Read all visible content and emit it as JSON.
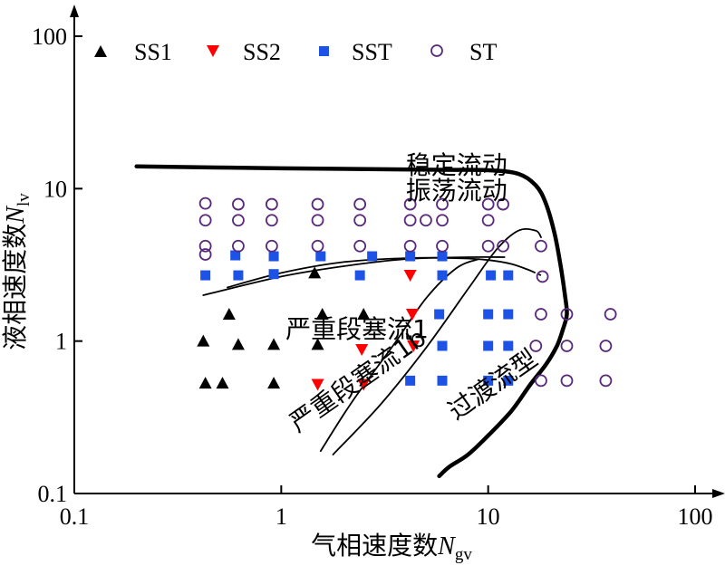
{
  "chart_data": {
    "type": "scatter",
    "xscale": "log",
    "yscale": "log",
    "xlim": [
      0.1,
      100
    ],
    "ylim": [
      0.1,
      100
    ],
    "grid": false,
    "legend_placement": "top",
    "xlabel": {
      "main": "气相速度数",
      "symbol": "N",
      "sub": "gv"
    },
    "ylabel": {
      "main": "液相速度数",
      "symbol": "N",
      "sub": "lv"
    },
    "x_ticks": [
      {
        "value": 0.1,
        "label": "0.1"
      },
      {
        "value": 1,
        "label": "1"
      },
      {
        "value": 10,
        "label": "10"
      },
      {
        "value": 100,
        "label": "100"
      }
    ],
    "y_ticks": [
      {
        "value": 0.1,
        "label": "0.1"
      },
      {
        "value": 1,
        "label": "1"
      },
      {
        "value": 10,
        "label": "10"
      },
      {
        "value": 100,
        "label": "100"
      }
    ],
    "series": [
      {
        "name": "SS1",
        "marker": "triangle-up",
        "color": "#000000",
        "points": [
          [
            0.42,
            1.0
          ],
          [
            0.43,
            0.53
          ],
          [
            0.52,
            0.53
          ],
          [
            0.56,
            1.5
          ],
          [
            0.62,
            0.95
          ],
          [
            0.92,
            0.53
          ],
          [
            0.92,
            0.95
          ],
          [
            1.45,
            2.8
          ],
          [
            1.5,
            0.95
          ],
          [
            1.58,
            1.5
          ],
          [
            2.5,
            1.5
          ]
        ]
      },
      {
        "name": "SS2",
        "marker": "triangle-down",
        "color": "#ff0000",
        "points": [
          [
            1.5,
            0.52
          ],
          [
            2.45,
            0.88
          ],
          [
            2.5,
            0.52
          ],
          [
            4.2,
            2.7
          ],
          [
            4.3,
            1.5
          ],
          [
            4.35,
            0.93
          ]
        ]
      },
      {
        "name": "SST",
        "marker": "square",
        "color": "#1c52e6",
        "points": [
          [
            0.43,
            2.7
          ],
          [
            0.6,
            3.65
          ],
          [
            0.62,
            2.7
          ],
          [
            0.92,
            2.75
          ],
          [
            0.92,
            3.6
          ],
          [
            1.55,
            3.6
          ],
          [
            2.4,
            2.7
          ],
          [
            2.75,
            3.6
          ],
          [
            4.2,
            3.6
          ],
          [
            4.2,
            0.55
          ],
          [
            5.8,
            1.5
          ],
          [
            6.0,
            0.93
          ],
          [
            6.0,
            0.55
          ],
          [
            6.0,
            2.7
          ],
          [
            6.0,
            3.6
          ],
          [
            10.0,
            1.5
          ],
          [
            10.0,
            0.93
          ],
          [
            10.0,
            0.55
          ],
          [
            10.3,
            2.7
          ],
          [
            12.5,
            2.7
          ],
          [
            12.5,
            1.5
          ],
          [
            12.5,
            0.93
          ],
          [
            12.5,
            0.55
          ]
        ]
      },
      {
        "name": "ST",
        "marker": "circle-open",
        "color": "#5a2a7a",
        "points": [
          [
            0.43,
            8.0
          ],
          [
            0.43,
            6.2
          ],
          [
            0.43,
            4.2
          ],
          [
            0.43,
            3.7
          ],
          [
            0.62,
            7.9
          ],
          [
            0.62,
            6.2
          ],
          [
            0.62,
            4.2
          ],
          [
            0.9,
            7.9
          ],
          [
            0.9,
            6.2
          ],
          [
            0.9,
            4.2
          ],
          [
            1.5,
            7.9
          ],
          [
            1.5,
            6.2
          ],
          [
            1.5,
            4.2
          ],
          [
            2.4,
            7.9
          ],
          [
            2.4,
            6.2
          ],
          [
            2.4,
            4.2
          ],
          [
            4.2,
            7.9
          ],
          [
            4.2,
            6.2
          ],
          [
            4.2,
            4.2
          ],
          [
            5.0,
            6.2
          ],
          [
            6.0,
            7.9
          ],
          [
            6.0,
            6.2
          ],
          [
            6.0,
            4.2
          ],
          [
            10.0,
            7.9
          ],
          [
            10.0,
            6.2
          ],
          [
            10.0,
            4.2
          ],
          [
            11.8,
            7.9
          ],
          [
            11.8,
            4.2
          ],
          [
            18.0,
            4.2
          ],
          [
            18.3,
            2.65
          ],
          [
            18.0,
            1.5
          ],
          [
            17.0,
            0.93
          ],
          [
            18.0,
            0.55
          ],
          [
            24.0,
            1.5
          ],
          [
            24.0,
            0.93
          ],
          [
            24.0,
            0.55
          ],
          [
            37.0,
            0.93
          ],
          [
            37.0,
            0.55
          ],
          [
            39.0,
            1.5
          ]
        ]
      }
    ],
    "boundaries": [
      {
        "id": "stable-oscillating",
        "style": "thick",
        "points": [
          [
            0.2,
            14.0
          ],
          [
            1,
            13.6
          ],
          [
            3,
            13.4
          ],
          [
            6,
            13.3
          ],
          [
            10,
            13.2
          ],
          [
            14,
            12.5
          ],
          [
            17,
            10.5
          ],
          [
            19,
            8
          ],
          [
            21,
            5
          ],
          [
            22.5,
            3
          ],
          [
            23.5,
            2
          ],
          [
            24,
            1.5
          ],
          [
            23,
            1.2
          ],
          [
            21.5,
            0.93
          ],
          [
            19,
            0.7
          ],
          [
            16,
            0.52
          ],
          [
            13,
            0.35
          ],
          [
            10,
            0.24
          ],
          [
            8,
            0.18
          ],
          [
            6.5,
            0.15
          ],
          [
            5.8,
            0.13
          ]
        ]
      },
      {
        "id": "transition-upper",
        "style": "thin",
        "dashed_tail": true,
        "points": [
          [
            0.55,
            2.25
          ],
          [
            1,
            2.8
          ],
          [
            2,
            3.3
          ],
          [
            4,
            3.5
          ],
          [
            7,
            3.5
          ],
          [
            10,
            3.4
          ],
          [
            13,
            3.2
          ],
          [
            16,
            2.9
          ],
          [
            18,
            2.7
          ]
        ]
      },
      {
        "id": "region-1-upper",
        "style": "thin",
        "points": [
          [
            0.42,
            2.0
          ],
          [
            1,
            2.65
          ],
          [
            2,
            3.1
          ],
          [
            4,
            3.45
          ],
          [
            8,
            3.55
          ],
          [
            12,
            3.55
          ]
        ]
      },
      {
        "id": "region-1b-left",
        "style": "thin",
        "points": [
          [
            1.55,
            0.19
          ],
          [
            2.2,
            0.4
          ],
          [
            3.5,
            0.95
          ],
          [
            5,
            1.9
          ],
          [
            7,
            3.0
          ],
          [
            9,
            3.45
          ]
        ]
      },
      {
        "id": "region-1b-right",
        "style": "thin",
        "points": [
          [
            1.78,
            0.18
          ],
          [
            3.0,
            0.38
          ],
          [
            5.0,
            0.9
          ],
          [
            8,
            2.2
          ],
          [
            11,
            4.0
          ],
          [
            14,
            5.3
          ],
          [
            17,
            5.3
          ],
          [
            18,
            4.8
          ]
        ]
      }
    ],
    "region_labels": [
      {
        "text": "稳定流动",
        "x": 4.0,
        "y": 12.5
      },
      {
        "text": "振荡流动",
        "x": 4.0,
        "y": 8.5
      },
      {
        "text": "严重段塞流1",
        "x": 1.05,
        "y": 1.05,
        "rotate": 0
      },
      {
        "text": "严重段塞流1b",
        "x": 1.2,
        "y": 0.25,
        "rotate": -35
      },
      {
        "text": "过渡流型",
        "x": 7.0,
        "y": 0.3,
        "rotate": -35
      }
    ]
  }
}
